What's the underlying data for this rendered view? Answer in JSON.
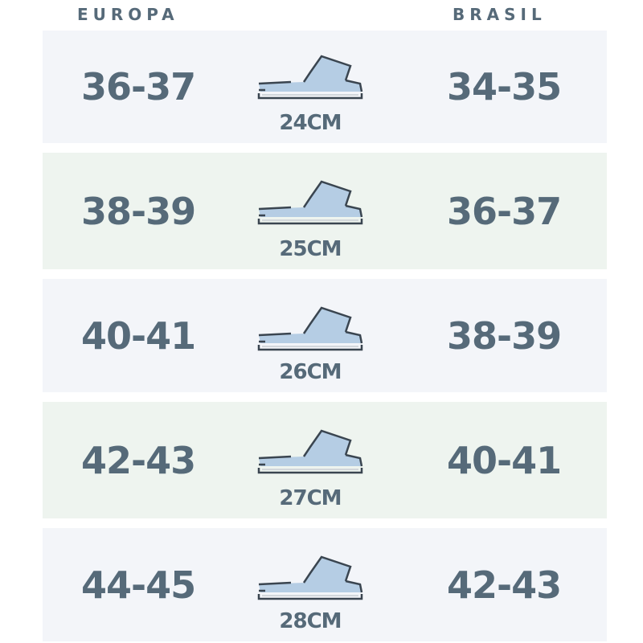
{
  "headers": {
    "europa": "EUROPA",
    "brasil": "BRASIL"
  },
  "colors": {
    "text": "#566a79",
    "row_odd": "#f3f5f9",
    "row_even": "#eef4ef",
    "shoe": "#b5cde4",
    "outline": "#3a4550"
  },
  "rows": [
    {
      "europa": "36-37",
      "length": "24CM",
      "brasil": "34-35",
      "icon": "slipper-icon"
    },
    {
      "europa": "38-39",
      "length": "25CM",
      "brasil": "36-37",
      "icon": "slipper-icon"
    },
    {
      "europa": "40-41",
      "length": "26CM",
      "brasil": "38-39",
      "icon": "slipper-icon"
    },
    {
      "europa": "42-43",
      "length": "27CM",
      "brasil": "40-41",
      "icon": "slipper-icon"
    },
    {
      "europa": "44-45",
      "length": "28CM",
      "brasil": "42-43",
      "icon": "slipper-icon"
    }
  ]
}
